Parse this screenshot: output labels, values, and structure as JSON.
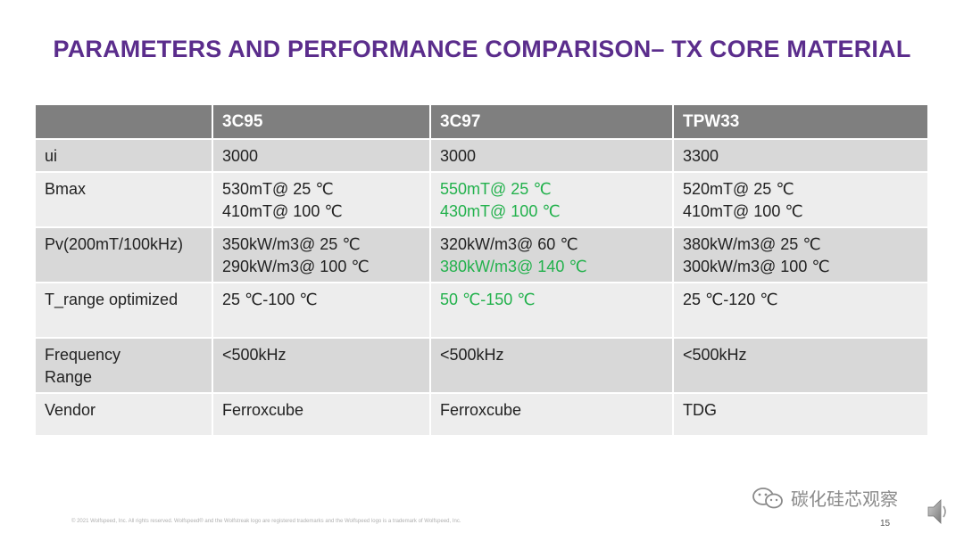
{
  "title": "PARAMETERS AND PERFORMANCE COMPARISON– TX CORE MATERIAL",
  "table": {
    "headers": [
      "",
      "3C95",
      "3C97",
      "TPW33"
    ],
    "rows": [
      {
        "label": "ui",
        "cells": [
          [
            "3000"
          ],
          [
            "3000"
          ],
          [
            "3300"
          ]
        ]
      },
      {
        "label": "Bmax",
        "cells": [
          [
            "530mT@ 25 ℃",
            "410mT@ 100 ℃"
          ],
          [
            "550mT@ 25 ℃",
            "430mT@ 100 ℃"
          ],
          [
            "520mT@ 25 ℃",
            "410mT@ 100 ℃"
          ]
        ]
      },
      {
        "label": "Pv(200mT/100kHz)",
        "cells": [
          [
            "350kW/m3@ 25 ℃",
            "290kW/m3@ 100 ℃"
          ],
          [
            "320kW/m3@ 60 ℃",
            "380kW/m3@ 140 ℃"
          ],
          [
            "380kW/m3@ 25 ℃",
            "300kW/m3@ 100 ℃"
          ]
        ]
      },
      {
        "label": "T_range optimized",
        "cells": [
          [
            "25 ℃-100 ℃"
          ],
          [
            "50 ℃-150 ℃"
          ],
          [
            "25 ℃-120 ℃"
          ]
        ]
      },
      {
        "label_lines": [
          "Frequency",
          "Range"
        ],
        "cells": [
          [
            "<500kHz"
          ],
          [
            "<500kHz"
          ],
          [
            "<500kHz"
          ]
        ]
      },
      {
        "label": "Vendor",
        "cells": [
          [
            "Ferroxcube"
          ],
          [
            "Ferroxcube"
          ],
          [
            "TDG"
          ]
        ]
      }
    ]
  },
  "footer": "© 2021 Wolfspeed, Inc. All rights reserved. Wolfspeed® and the Wolfstreak logo are registered trademarks and the Wolfspeed logo is a trademark of Wolfspeed, Inc.",
  "page_number": "15",
  "watermark": {
    "text": "碳化硅芯观察",
    "icon": "wechat-icon"
  },
  "colors": {
    "title": "#5b2d8c",
    "header_bg": "#7f7f7f",
    "highlight": "#22b14c",
    "row_shade": "#d8d8d8",
    "row_light": "#ededed"
  }
}
